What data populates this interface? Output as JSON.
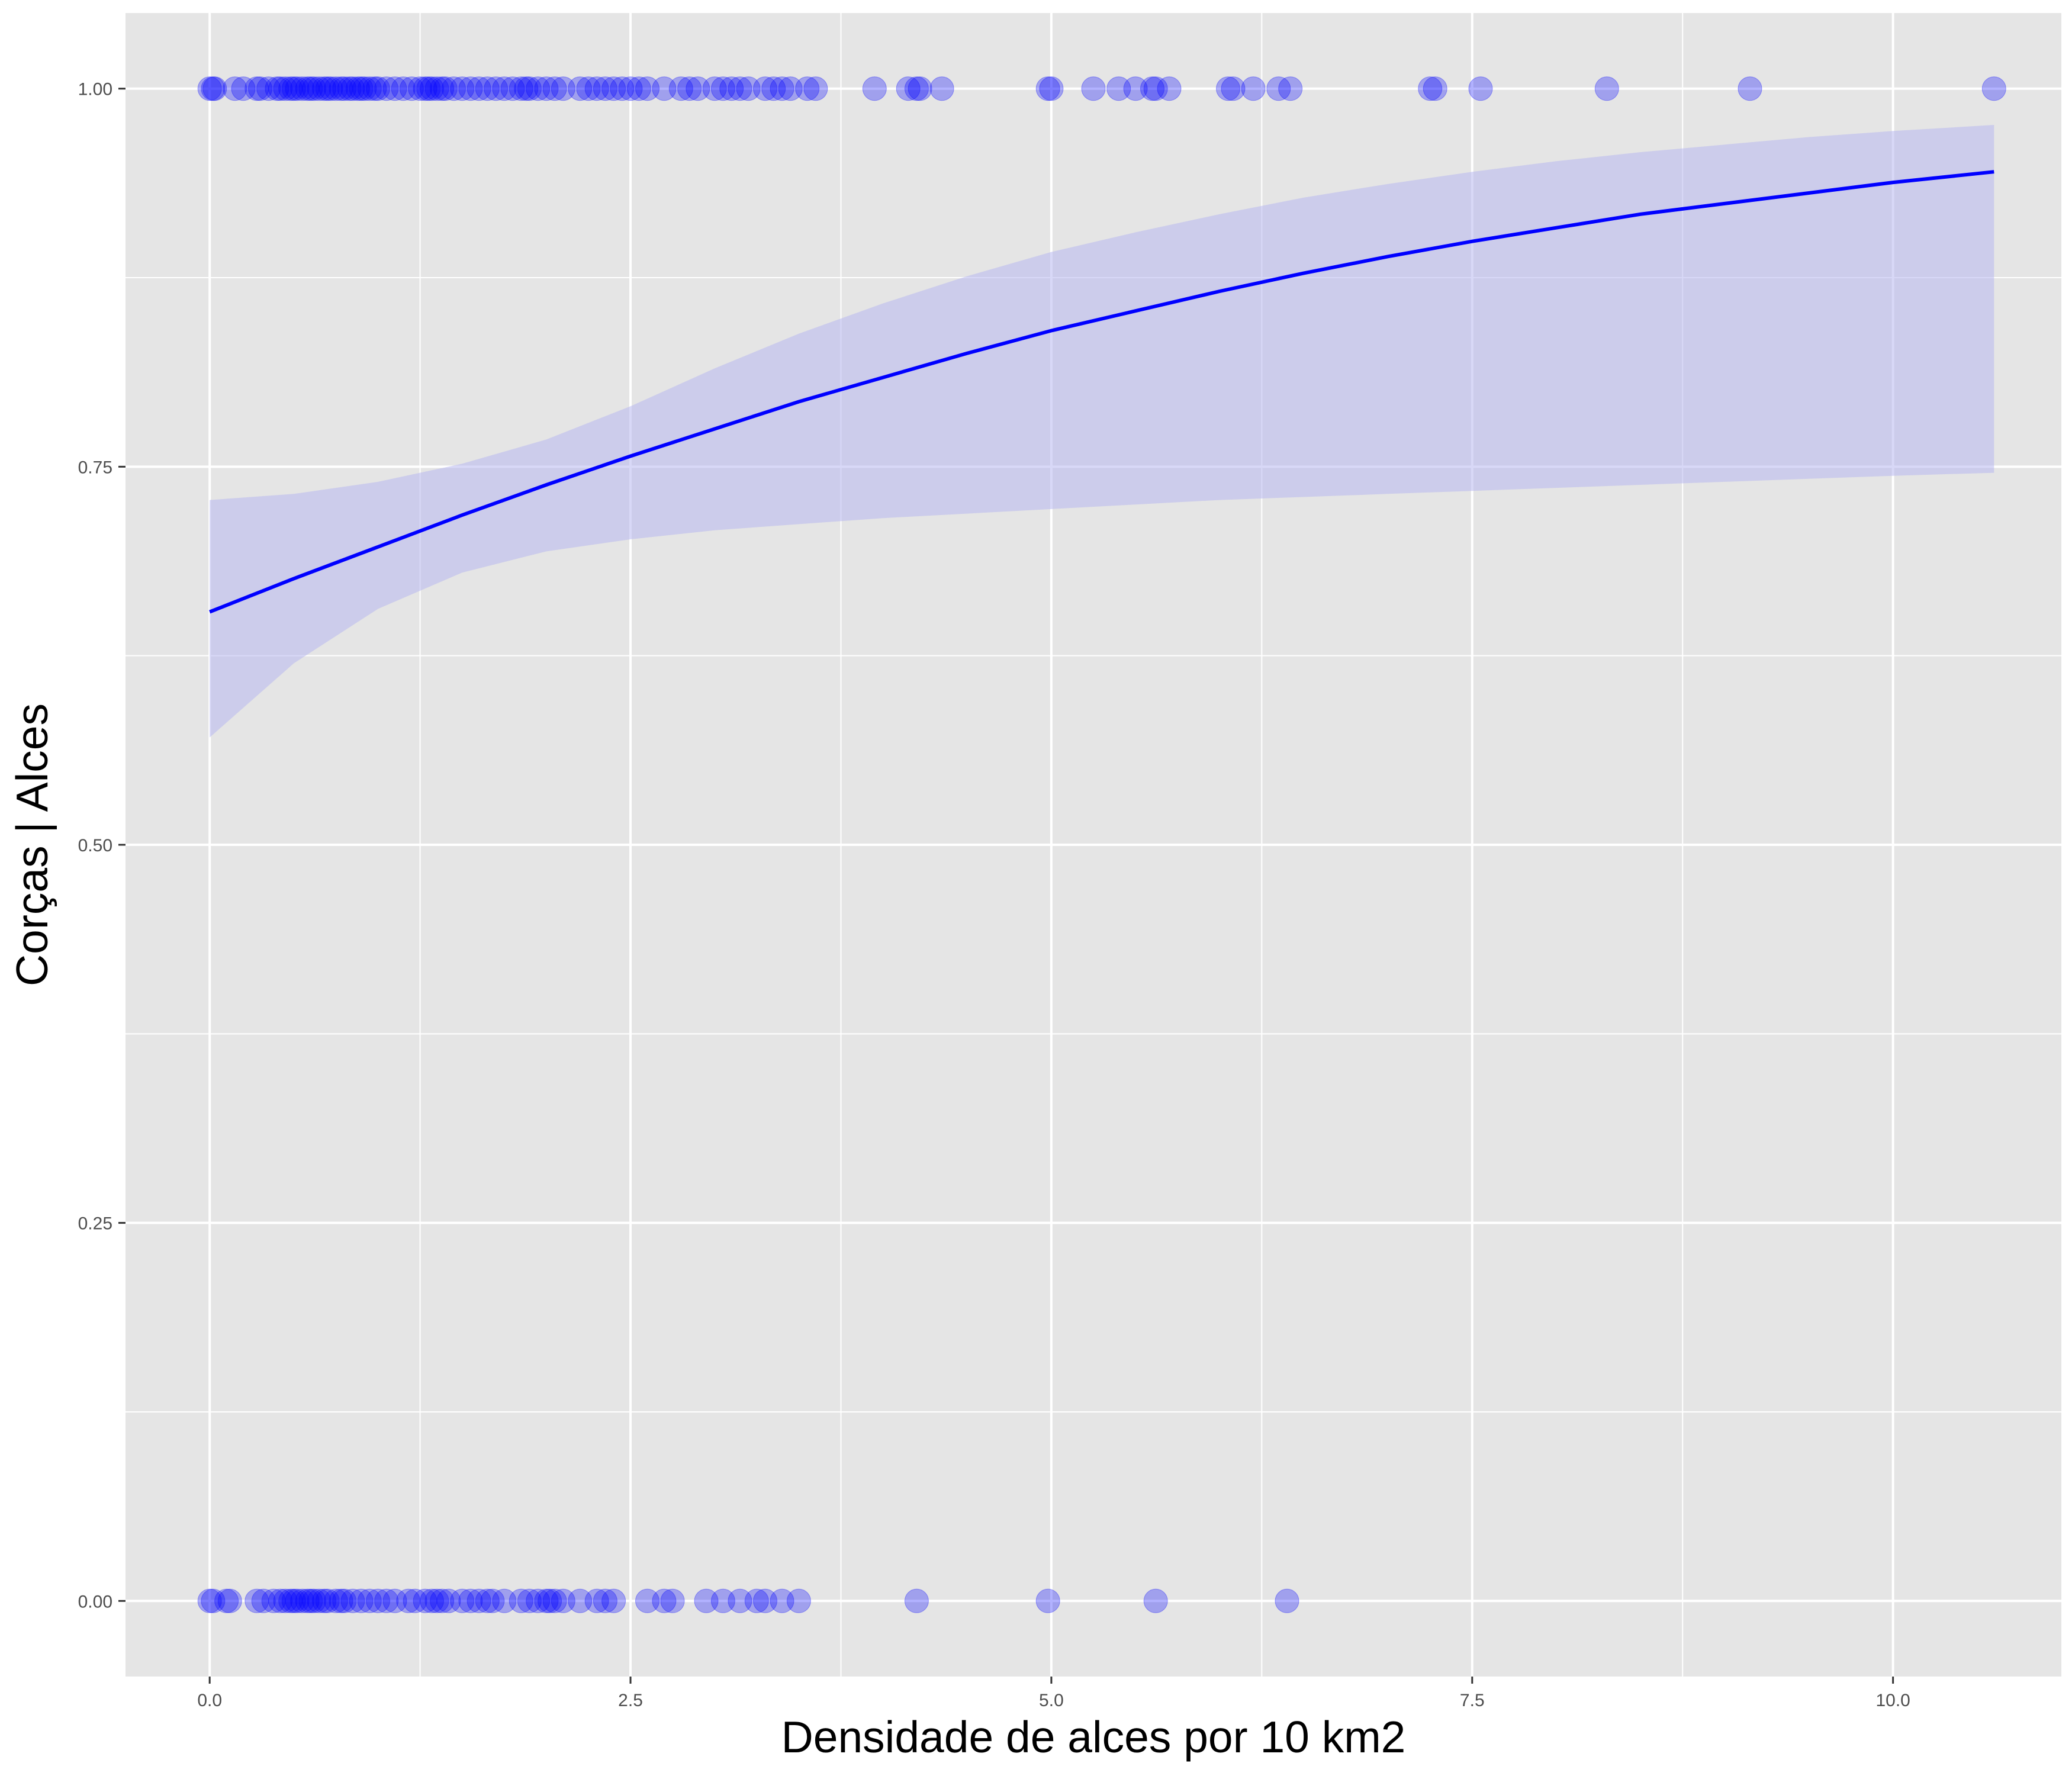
{
  "chart_data": {
    "type": "scatter",
    "title": "",
    "xlabel": "Densidade de alces por 10 km2",
    "ylabel": "Corças | Alces",
    "xlim": [
      -0.5,
      11.0
    ],
    "ylim": [
      -0.05,
      1.05
    ],
    "x_ticks": [
      0,
      2.5,
      5,
      7.5,
      10
    ],
    "x_tick_labels": [
      "0.0",
      "2.5",
      "5.0",
      "7.5",
      "10.0"
    ],
    "y_ticks": [
      0,
      0.25,
      0.5,
      0.75,
      1
    ],
    "y_tick_labels": [
      "0.00",
      "0.25",
      "0.50",
      "0.75",
      "1.00"
    ],
    "grid": true,
    "legend": "none",
    "colors": {
      "panel_background": "#e5e5e5",
      "grid": "#ffffff",
      "points": "#0000ff",
      "fit_line": "#0000ff",
      "confidence_band": "#b8b8f0"
    },
    "series": [
      {
        "kind": "points",
        "y": 1,
        "x": [
          0.0,
          0.02,
          0.03,
          0.15,
          0.2,
          0.28,
          0.3,
          0.35,
          0.4,
          0.42,
          0.45,
          0.48,
          0.5,
          0.52,
          0.55,
          0.58,
          0.6,
          0.62,
          0.65,
          0.68,
          0.7,
          0.72,
          0.75,
          0.78,
          0.8,
          0.83,
          0.85,
          0.88,
          0.9,
          0.92,
          0.95,
          0.98,
          1.0,
          1.05,
          1.1,
          1.15,
          1.2,
          1.25,
          1.28,
          1.3,
          1.32,
          1.35,
          1.38,
          1.4,
          1.45,
          1.5,
          1.55,
          1.6,
          1.65,
          1.7,
          1.75,
          1.8,
          1.85,
          1.88,
          1.9,
          1.95,
          2.0,
          2.05,
          2.1,
          2.2,
          2.25,
          2.3,
          2.35,
          2.4,
          2.45,
          2.5,
          2.55,
          2.6,
          2.7,
          2.8,
          2.85,
          2.9,
          3.0,
          3.05,
          3.1,
          3.15,
          3.2,
          3.3,
          3.35,
          3.4,
          3.45,
          3.55,
          3.6,
          3.95,
          4.15,
          4.2,
          4.22,
          4.35,
          4.98,
          5.0,
          5.25,
          5.4,
          5.5,
          5.6,
          5.62,
          5.7,
          6.05,
          6.08,
          6.2,
          6.35,
          6.42,
          7.25,
          7.28,
          7.55,
          8.3,
          9.15,
          10.6
        ]
      },
      {
        "kind": "points",
        "y": 0,
        "x": [
          0.0,
          0.02,
          0.1,
          0.12,
          0.28,
          0.32,
          0.38,
          0.42,
          0.45,
          0.48,
          0.5,
          0.52,
          0.55,
          0.58,
          0.6,
          0.62,
          0.65,
          0.68,
          0.7,
          0.75,
          0.78,
          0.8,
          0.85,
          0.9,
          0.95,
          1.0,
          1.05,
          1.1,
          1.18,
          1.22,
          1.28,
          1.32,
          1.35,
          1.38,
          1.42,
          1.5,
          1.55,
          1.6,
          1.65,
          1.68,
          1.75,
          1.85,
          1.9,
          1.95,
          2.0,
          2.02,
          2.05,
          2.1,
          2.2,
          2.3,
          2.35,
          2.4,
          2.6,
          2.7,
          2.75,
          2.95,
          3.05,
          3.15,
          3.25,
          3.3,
          3.4,
          3.5,
          4.2,
          4.98,
          5.62,
          6.4
        ]
      },
      {
        "kind": "logistic_fit",
        "x": [
          0,
          0.5,
          1,
          1.5,
          2,
          2.5,
          3,
          3.5,
          4,
          4.5,
          5,
          5.5,
          6,
          6.5,
          7,
          7.5,
          8,
          8.5,
          9,
          9.5,
          10,
          10.6
        ],
        "y": [
          0.654,
          0.676,
          0.697,
          0.718,
          0.738,
          0.757,
          0.775,
          0.793,
          0.809,
          0.825,
          0.84,
          0.853,
          0.866,
          0.878,
          0.889,
          0.899,
          0.908,
          0.917,
          0.924,
          0.931,
          0.938,
          0.945
        ],
        "lower": [
          0.571,
          0.62,
          0.656,
          0.68,
          0.694,
          0.702,
          0.708,
          0.712,
          0.716,
          0.719,
          0.722,
          0.725,
          0.728,
          0.73,
          0.732,
          0.734,
          0.736,
          0.738,
          0.74,
          0.742,
          0.744,
          0.746
        ],
        "upper": [
          0.728,
          0.732,
          0.74,
          0.752,
          0.768,
          0.79,
          0.815,
          0.838,
          0.858,
          0.876,
          0.892,
          0.905,
          0.917,
          0.928,
          0.937,
          0.945,
          0.952,
          0.958,
          0.963,
          0.968,
          0.972,
          0.976
        ]
      }
    ]
  }
}
